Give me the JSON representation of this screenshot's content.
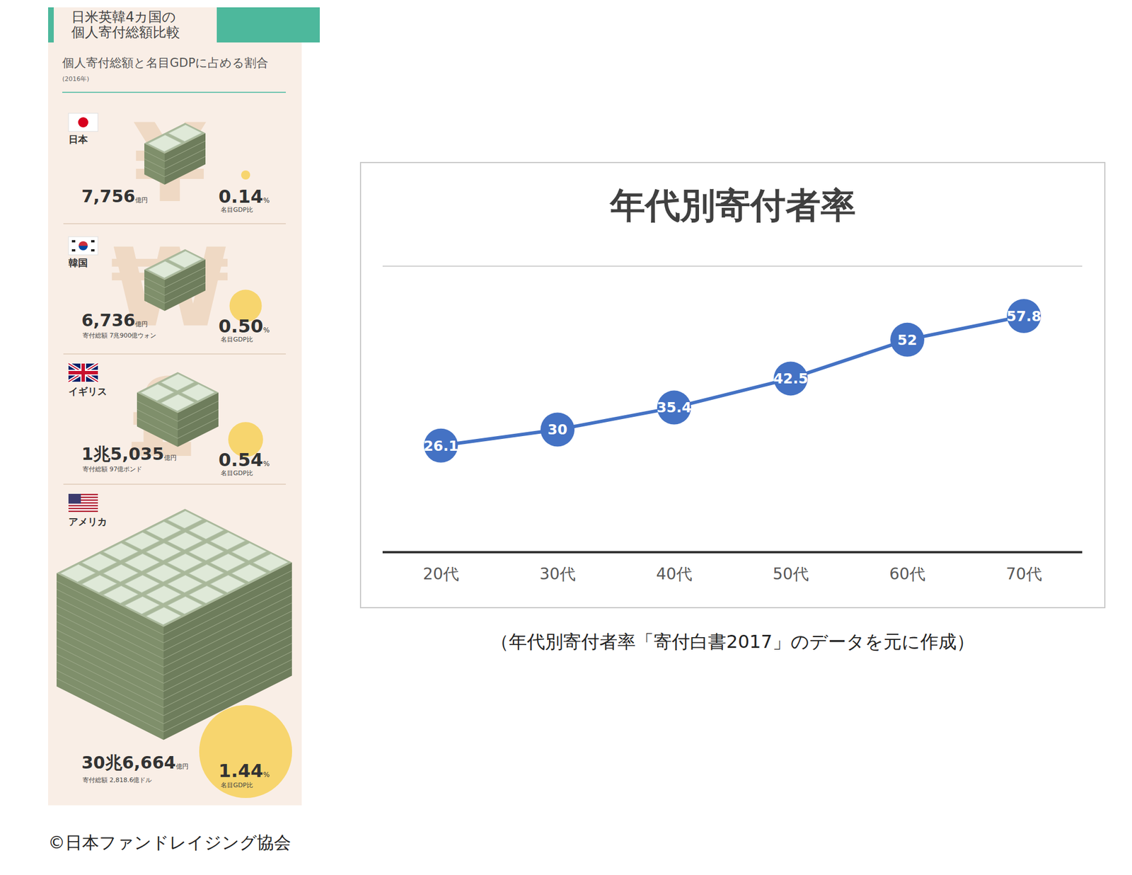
{
  "infographic": {
    "title_lines": [
      "日米英韓4カ国の",
      "個人寄付総額比較"
    ],
    "subtitle": "個人寄付総額と名目GDPに占める割合",
    "year": "(2016年)",
    "amount_unit": "億円",
    "ratio_label": "名目GDP比",
    "percent_sign": "%",
    "countries": [
      {
        "name": "日本",
        "symbol": "¥",
        "amount": "7,756",
        "gdp_ratio": 0.14,
        "gdp_ratio_label": "0.14"
      },
      {
        "name": "韓国",
        "symbol": "₩",
        "amount": "6,736",
        "local_amount": "寄付総額 7兆900億ウォン",
        "gdp_ratio": 0.5,
        "gdp_ratio_label": "0.50"
      },
      {
        "name": "イギリス",
        "symbol": "£",
        "amount": "1兆5,035",
        "local_amount": "寄付総額 97億ポンド",
        "gdp_ratio": 0.54,
        "gdp_ratio_label": "0.54"
      },
      {
        "name": "アメリカ",
        "symbol": "$",
        "amount": "30兆6,664",
        "local_amount": "寄付総額 2,818.6億ドル",
        "gdp_ratio": 1.44,
        "gdp_ratio_label": "1.44"
      }
    ]
  },
  "chart_data": {
    "type": "line",
    "title": "年代別寄付者率",
    "categories": [
      "20代",
      "30代",
      "40代",
      "50代",
      "60代",
      "70代"
    ],
    "values": [
      26.1,
      30,
      35.4,
      42.5,
      52,
      57.8
    ],
    "color": "#4472c4",
    "ylim": [
      0,
      70
    ],
    "yticks": [
      0,
      10,
      20,
      30,
      40,
      50,
      60,
      70
    ],
    "grid": true,
    "data_labels": true,
    "tick_labels": "x",
    "marker": "circle"
  },
  "caption": "（年代別寄付者率「寄付白書2017」のデータを元に作成）",
  "credit": "©日本ファンドレイジング協会"
}
